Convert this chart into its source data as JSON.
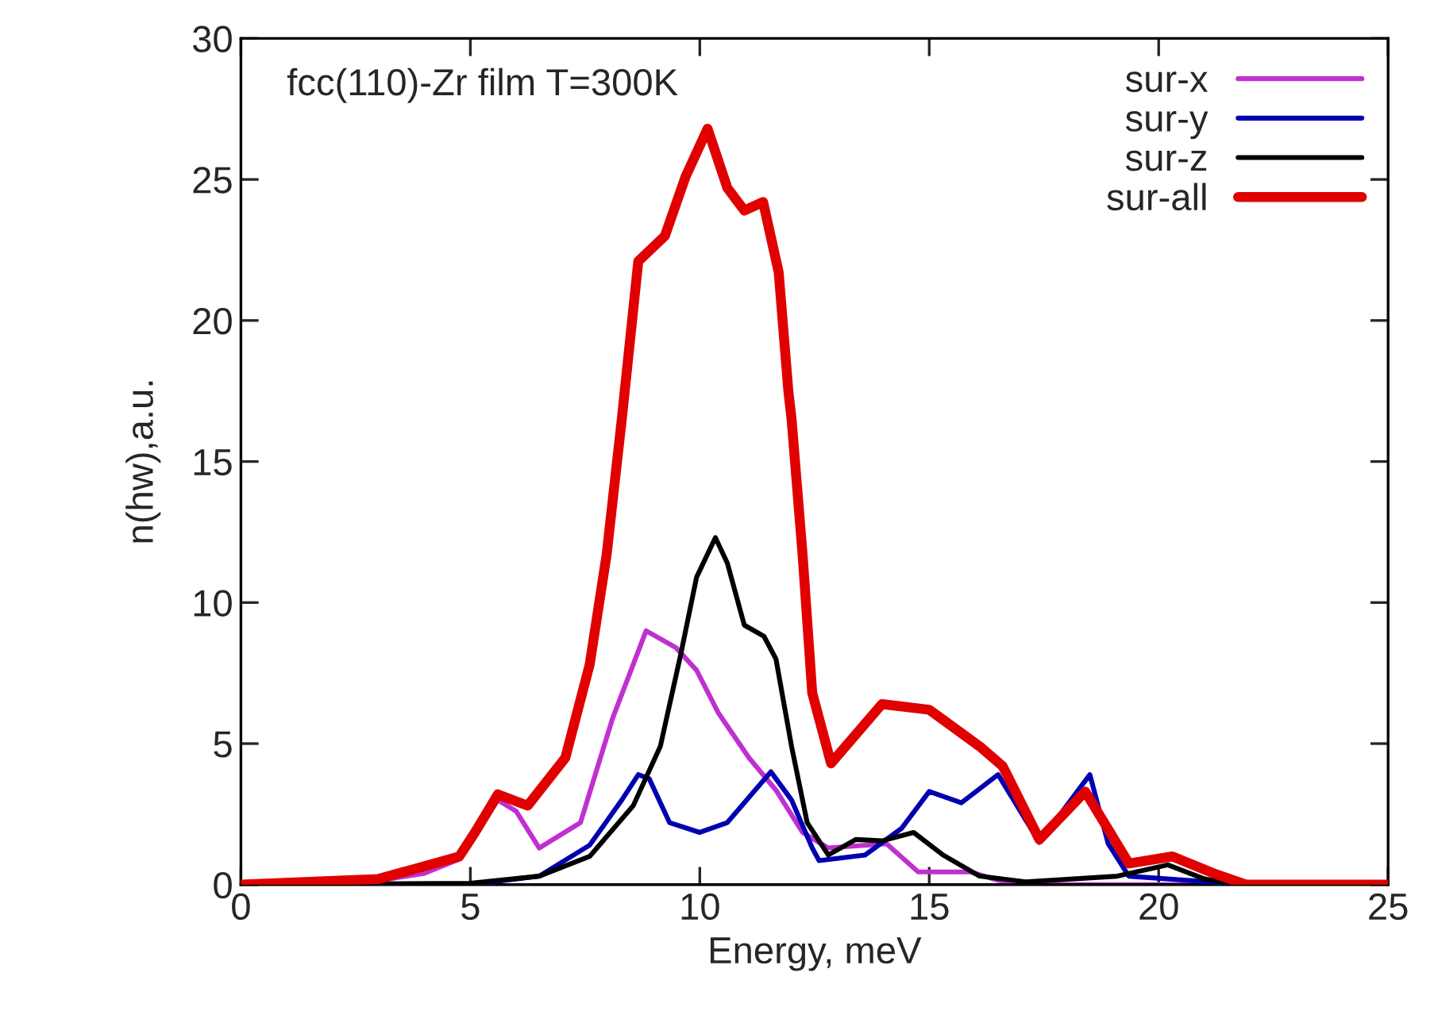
{
  "chart_data": {
    "type": "line",
    "xlabel": "Energy, meV",
    "ylabel": "n(hw),a.u.",
    "annotations": [
      "fcc(110)-Zr film T=300K"
    ],
    "xlim": [
      0,
      25
    ],
    "xticks": [
      0,
      5,
      10,
      15,
      20,
      25
    ],
    "ylim": [
      0,
      30
    ],
    "yticks": [
      0,
      5,
      10,
      15,
      20,
      25,
      30
    ],
    "grid": false,
    "legend": "top right",
    "line_style": "solid",
    "marker": "none",
    "series": [
      {
        "name": "sur-x",
        "color": "#c030d0",
        "x": [
          0,
          3,
          4,
          4.76,
          5.6,
          6.0,
          6.5,
          7.4,
          8.1,
          8.83,
          9.48,
          9.93,
          10.4,
          11.07,
          11.66,
          12.24,
          12.8,
          14.07,
          14.76,
          15.9,
          16.5,
          17.5,
          25
        ],
        "values": [
          0,
          0.15,
          0.4,
          0.9,
          3.0,
          2.6,
          1.3,
          2.2,
          5.9,
          9.0,
          8.4,
          7.6,
          6.1,
          4.5,
          3.35,
          1.85,
          1.3,
          1.45,
          0.45,
          0.45,
          0.15,
          0,
          0
        ]
      },
      {
        "name": "sur-y",
        "color": "#0000b0",
        "x": [
          0,
          5,
          6.5,
          7.6,
          8.3,
          8.66,
          8.9,
          9.34,
          10.0,
          10.6,
          11.55,
          12.0,
          12.45,
          12.6,
          13.6,
          14.4,
          15.0,
          15.7,
          16.5,
          17.4,
          18.5,
          18.9,
          19.35,
          21.1,
          22,
          25
        ],
        "values": [
          0,
          0,
          0.3,
          1.4,
          3.0,
          3.9,
          3.75,
          2.2,
          1.85,
          2.2,
          4.0,
          3.0,
          1.3,
          0.85,
          1.05,
          2.0,
          3.3,
          2.9,
          3.9,
          1.5,
          3.9,
          1.45,
          0.3,
          0.1,
          0,
          0
        ]
      },
      {
        "name": "sur-z",
        "color": "#000000",
        "x": [
          0,
          5,
          6.5,
          7.6,
          8.55,
          9.14,
          9.59,
          9.93,
          10.34,
          10.6,
          10.97,
          11.4,
          11.66,
          12.0,
          12.34,
          12.8,
          13.4,
          13.97,
          14.66,
          15.3,
          16.1,
          17.1,
          19.1,
          20.2,
          21.0,
          21.8,
          25
        ],
        "values": [
          0,
          0.05,
          0.3,
          1.0,
          2.8,
          4.9,
          8.2,
          10.9,
          12.3,
          11.4,
          9.2,
          8.8,
          8.0,
          4.9,
          2.2,
          1.05,
          1.6,
          1.55,
          1.85,
          1.05,
          0.3,
          0.1,
          0.3,
          0.7,
          0.2,
          0,
          0
        ]
      },
      {
        "name": "sur-all",
        "color": "#e00000",
        "x": [
          0,
          3,
          4.76,
          5.1,
          5.6,
          6.25,
          7.07,
          7.6,
          7.97,
          8.3,
          8.66,
          9.24,
          9.69,
          10.17,
          10.6,
          10.97,
          11.38,
          11.72,
          11.93,
          12.0,
          12.24,
          12.45,
          12.86,
          13.97,
          15.0,
          16.1,
          16.6,
          17.4,
          18.4,
          19.35,
          20.3,
          21.2,
          21.9,
          25
        ],
        "values": [
          0,
          0.2,
          1.0,
          1.85,
          3.2,
          2.8,
          4.5,
          7.8,
          11.7,
          16.5,
          22.1,
          23.0,
          25.1,
          26.8,
          24.7,
          23.9,
          24.2,
          21.7,
          17.5,
          16.5,
          11.7,
          6.8,
          4.3,
          6.4,
          6.2,
          4.9,
          4.2,
          1.6,
          3.3,
          0.75,
          1.0,
          0.4,
          0,
          0
        ]
      }
    ]
  }
}
